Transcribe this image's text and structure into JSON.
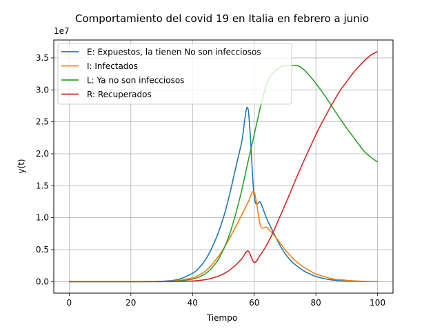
{
  "chart_data": {
    "type": "line",
    "title": "Comportamiento del covid 19 en Italia en febrero a junio",
    "xlabel": "Tiempo",
    "ylabel": "y(t)",
    "y_offset_label": "1e7",
    "xlim": [
      -5,
      105
    ],
    "ylim": [
      -0.18,
      3.78
    ],
    "x_ticks": [
      0,
      20,
      40,
      60,
      80,
      100
    ],
    "x_tick_labels": [
      "0",
      "20",
      "40",
      "60",
      "80",
      "100"
    ],
    "y_ticks": [
      0.0,
      0.5,
      1.0,
      1.5,
      2.0,
      2.5,
      3.0,
      3.5
    ],
    "y_tick_labels": [
      "0.0",
      "0.5",
      "1.0",
      "1.5",
      "2.0",
      "2.5",
      "3.0",
      "3.5"
    ],
    "grid": true,
    "legend_position": "top-left",
    "x": [
      0,
      5,
      10,
      15,
      20,
      25,
      30,
      35,
      40,
      42,
      44,
      46,
      48,
      50,
      52,
      54,
      56,
      58,
      60,
      62,
      64,
      66,
      68,
      70,
      72,
      74,
      76,
      78,
      80,
      82,
      84,
      86,
      88,
      90,
      92,
      94,
      96,
      98,
      100
    ],
    "series": [
      {
        "name": "E: Expuestos, la tienen No son infecciosos",
        "color": "#1f77b4",
        "values": [
          0,
          0,
          0,
          0,
          0,
          0.001,
          0.006,
          0.03,
          0.13,
          0.21,
          0.33,
          0.5,
          0.72,
          1.0,
          1.36,
          1.78,
          2.2,
          2.7,
          1.33,
          1.24,
          0.99,
          0.79,
          0.6,
          0.44,
          0.32,
          0.24,
          0.17,
          0.12,
          0.08,
          0.055,
          0.035,
          0.022,
          0.014,
          0.008,
          0.005,
          0.003,
          0.002,
          0.001,
          0.0
        ]
      },
      {
        "name": "I: Infectados",
        "color": "#ff7f0e",
        "values": [
          0,
          0,
          0,
          0,
          0,
          0.0005,
          0.003,
          0.015,
          0.06,
          0.1,
          0.16,
          0.25,
          0.37,
          0.51,
          0.68,
          0.86,
          1.05,
          1.24,
          1.4,
          0.88,
          0.85,
          0.75,
          0.63,
          0.5,
          0.39,
          0.3,
          0.23,
          0.17,
          0.12,
          0.09,
          0.06,
          0.04,
          0.03,
          0.02,
          0.013,
          0.008,
          0.005,
          0.003,
          0.002
        ]
      },
      {
        "name": "L: Ya no son infecciosos",
        "color": "#2ca02c",
        "values": [
          0,
          0,
          0,
          0,
          0,
          0.0002,
          0.001,
          0.008,
          0.04,
          0.07,
          0.12,
          0.2,
          0.32,
          0.5,
          0.74,
          1.06,
          1.44,
          1.88,
          2.3,
          2.73,
          3.09,
          3.26,
          3.34,
          3.38,
          3.38,
          3.38,
          3.32,
          3.22,
          3.1,
          2.97,
          2.83,
          2.68,
          2.54,
          2.4,
          2.27,
          2.14,
          2.02,
          1.94,
          1.87
        ]
      },
      {
        "name": "R: Recuperados",
        "color": "#d62728",
        "values": [
          0,
          0,
          0,
          0,
          0,
          0,
          0.0002,
          0.002,
          0.01,
          0.018,
          0.03,
          0.05,
          0.08,
          0.12,
          0.18,
          0.26,
          0.36,
          0.48,
          0.3,
          0.42,
          0.57,
          0.76,
          0.98,
          1.2,
          1.43,
          1.66,
          1.88,
          2.09,
          2.3,
          2.49,
          2.67,
          2.84,
          3.0,
          3.13,
          3.26,
          3.37,
          3.47,
          3.55,
          3.6
        ]
      }
    ]
  }
}
